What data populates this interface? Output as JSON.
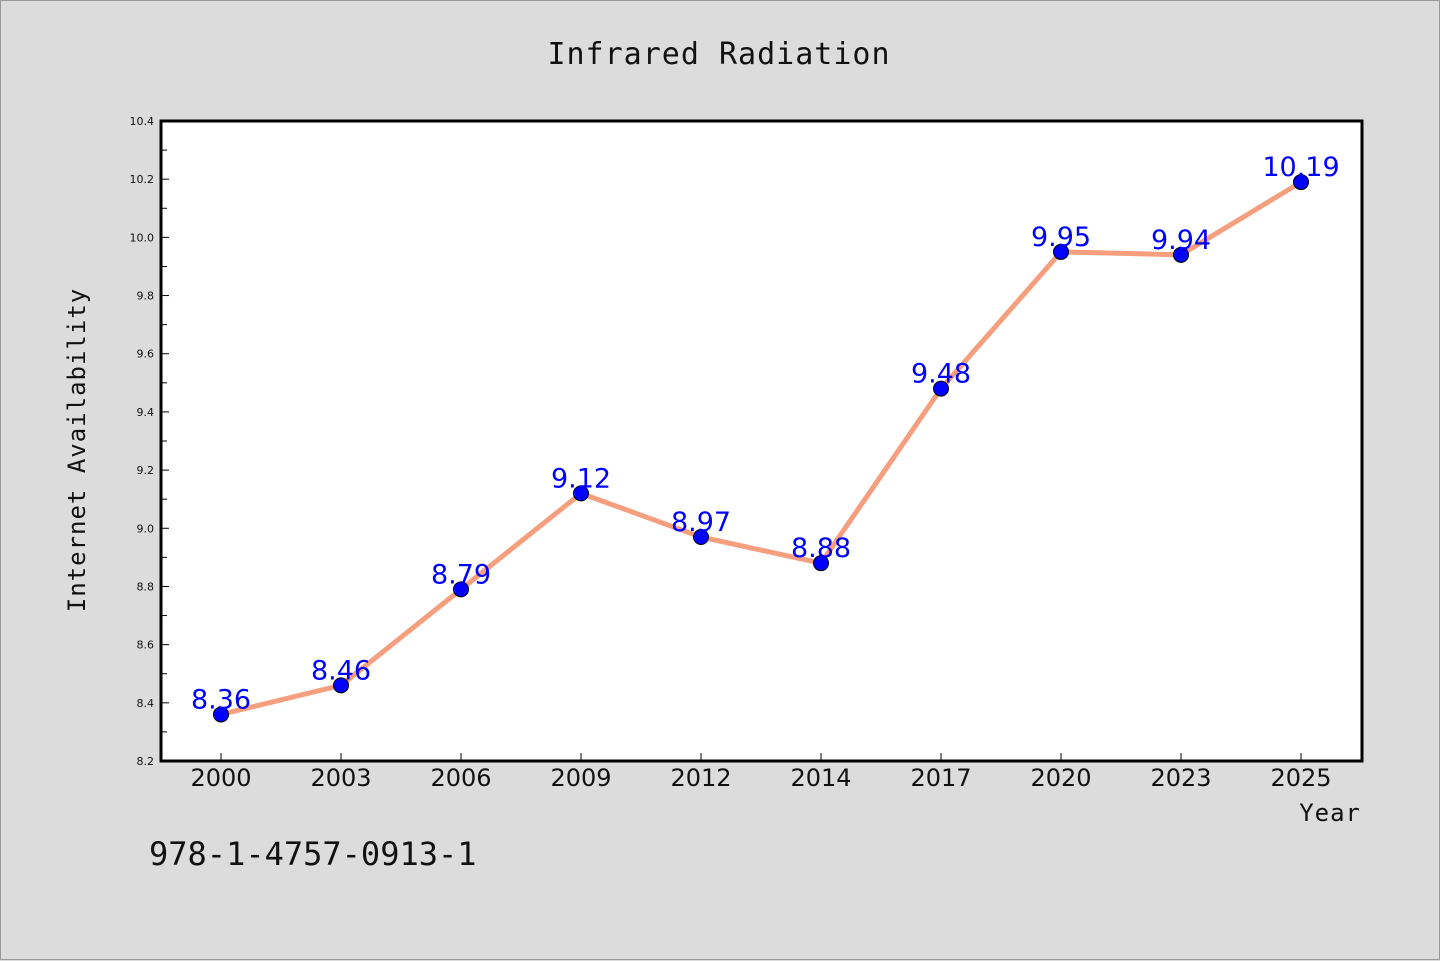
{
  "colors": {
    "line": "#f59f7f",
    "marker_fill": "#0000ff",
    "label": "#0000ff",
    "plot_bg": "#ffffff",
    "page_bg": "#dcdcdc"
  },
  "footnote": "978-1-4757-0913-1",
  "chart_data": {
    "type": "line",
    "title": "Infrared Radiation",
    "xlabel": "Year",
    "ylabel": "Internet Availability",
    "categories": [
      "2000",
      "2003",
      "2006",
      "2009",
      "2012",
      "2014",
      "2017",
      "2020",
      "2023",
      "2025"
    ],
    "series": [
      {
        "values": [
          8.36,
          8.46,
          8.79,
          9.12,
          8.97,
          8.88,
          9.48,
          9.95,
          9.94,
          10.19
        ],
        "labels": [
          "8.36",
          "8.46",
          "8.79",
          "9.12",
          "8.97",
          "8.88",
          "9.48",
          "9.95",
          "9.94",
          "10.19"
        ]
      }
    ],
    "ylim": [
      8.2,
      10.4
    ],
    "yticks": [
      "8.2",
      "8.4",
      "8.6",
      "8.8",
      "9.0",
      "9.2",
      "9.4",
      "9.6",
      "9.8",
      "10.0",
      "10.2",
      "10.4"
    ],
    "grid": false,
    "legend": "none"
  }
}
